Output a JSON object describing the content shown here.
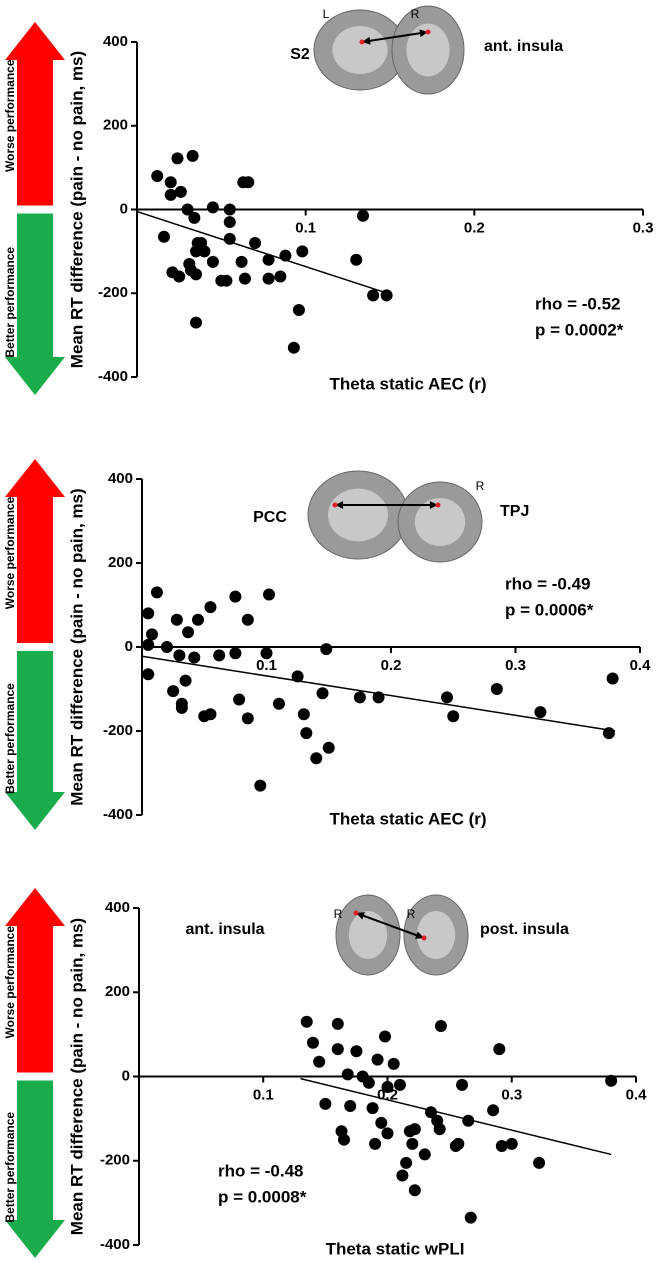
{
  "performance_labels": [
    "Worse performance",
    "Better performance"
  ],
  "chart_data": [
    {
      "type": "scatter",
      "xlabel": "Theta static AEC (r)",
      "ylabel": "Mean RT difference (pain - no pain, ms)",
      "stats": [
        "rho = -0.52",
        "p = 0.0002*"
      ],
      "brain_labels": [
        "L",
        "R",
        "S2",
        "ant. insula"
      ],
      "xlim": [
        0,
        0.3
      ],
      "ylim": [
        -400,
        400
      ],
      "xticks": [
        0.1,
        0.2,
        0.3
      ],
      "yticks": [
        -400,
        -200,
        0,
        200,
        400
      ],
      "color": "#000000",
      "x": [
        0.012,
        0.02,
        0.024,
        0.026,
        0.02,
        0.033,
        0.03,
        0.034,
        0.016,
        0.021,
        0.025,
        0.031,
        0.032,
        0.035,
        0.036,
        0.038,
        0.04,
        0.035,
        0.035,
        0.045,
        0.055,
        0.055,
        0.055,
        0.045,
        0.05,
        0.053,
        0.063,
        0.066,
        0.07,
        0.062,
        0.064,
        0.078,
        0.085,
        0.078,
        0.088,
        0.098,
        0.096,
        0.093,
        0.13,
        0.134,
        0.14,
        0.148
      ],
      "values": [
        80,
        65,
        122,
        42,
        35,
        128,
        0,
        -20,
        -65,
        -150,
        -160,
        -130,
        -145,
        -100,
        -80,
        -80,
        -100,
        -155,
        -270,
        5,
        0,
        -30,
        -70,
        -125,
        -170,
        -170,
        65,
        65,
        -80,
        -125,
        -165,
        -165,
        -160,
        -120,
        -110,
        -100,
        -240,
        -330,
        -120,
        -15,
        -205,
        -205
      ],
      "fit": {
        "x": [
          0,
          0.15
        ],
        "y": [
          -5,
          -202
        ]
      }
    },
    {
      "type": "scatter",
      "xlabel": "Theta static AEC (r)",
      "ylabel": "Mean RT difference (pain - no pain, ms)",
      "stats": [
        "rho = -0.49",
        "p = 0.0006*"
      ],
      "brain_labels": [
        "R",
        "PCC",
        "TPJ"
      ],
      "xlim": [
        0,
        0.4
      ],
      "ylim": [
        -400,
        400
      ],
      "xticks": [
        0.1,
        0.2,
        0.3,
        0.4
      ],
      "yticks": [
        -400,
        -200,
        0,
        200,
        400
      ],
      "color": "#000000",
      "x": [
        0.005,
        0.005,
        0.012,
        0.008,
        0.005,
        0.02,
        0.025,
        0.028,
        0.03,
        0.032,
        0.032,
        0.035,
        0.037,
        0.042,
        0.045,
        0.05,
        0.055,
        0.055,
        0.062,
        0.075,
        0.075,
        0.078,
        0.085,
        0.085,
        0.095,
        0.1,
        0.102,
        0.11,
        0.125,
        0.13,
        0.132,
        0.14,
        0.145,
        0.148,
        0.15,
        0.175,
        0.19,
        0.245,
        0.25,
        0.285,
        0.32,
        0.375,
        0.378
      ],
      "values": [
        5,
        80,
        130,
        30,
        -65,
        0,
        -105,
        65,
        -20,
        -145,
        -135,
        -80,
        35,
        -25,
        65,
        -165,
        -160,
        95,
        -20,
        -15,
        120,
        -125,
        65,
        -170,
        -330,
        -15,
        125,
        -135,
        -70,
        -160,
        -205,
        -265,
        -110,
        -5,
        -240,
        -120,
        -120,
        -120,
        -165,
        -100,
        -155,
        -205,
        -75
      ],
      "fit": {
        "x": [
          0,
          0.38
        ],
        "y": [
          -22,
          -200
        ]
      }
    },
    {
      "type": "scatter",
      "xlabel": "Theta static wPLI",
      "ylabel": "Mean RT difference (pain - no pain, ms)",
      "stats": [
        "rho = -0.48",
        "p = 0.0008*"
      ],
      "brain_labels": [
        "R",
        "R",
        "ant. insula",
        "post. insula"
      ],
      "xlim": [
        0,
        0.4
      ],
      "ylim": [
        -400,
        400
      ],
      "xticks": [
        0.1,
        0.2,
        0.3,
        0.4
      ],
      "yticks": [
        -400,
        -200,
        0,
        200,
        400
      ],
      "color": "#000000",
      "x": [
        0.135,
        0.14,
        0.145,
        0.15,
        0.16,
        0.16,
        0.163,
        0.165,
        0.168,
        0.17,
        0.175,
        0.18,
        0.185,
        0.188,
        0.19,
        0.192,
        0.195,
        0.198,
        0.2,
        0.2,
        0.205,
        0.21,
        0.212,
        0.215,
        0.218,
        0.22,
        0.222,
        0.222,
        0.23,
        0.235,
        0.24,
        0.242,
        0.243,
        0.255,
        0.257,
        0.26,
        0.265,
        0.267,
        0.285,
        0.29,
        0.292,
        0.3,
        0.322,
        0.38
      ],
      "values": [
        130,
        80,
        35,
        -65,
        65,
        125,
        -130,
        -150,
        5,
        -70,
        60,
        0,
        -15,
        -75,
        -160,
        40,
        -110,
        95,
        -135,
        -25,
        30,
        -20,
        -235,
        -205,
        -130,
        -160,
        -125,
        -270,
        -185,
        -85,
        -105,
        -125,
        120,
        -165,
        -160,
        -20,
        -105,
        -335,
        -80,
        65,
        -165,
        -160,
        -205,
        -10
      ],
      "fit": {
        "x": [
          0.13,
          0.38
        ],
        "y": [
          -5,
          -185
        ]
      }
    }
  ]
}
